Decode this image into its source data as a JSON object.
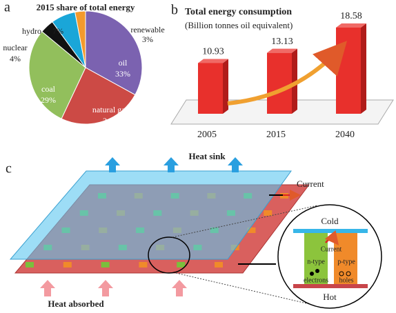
{
  "panel_labels": [
    "a",
    "b",
    "c"
  ],
  "chart_data": [
    {
      "type": "pie",
      "title": "2015 share of total energy",
      "categories": [
        "oil",
        "natural gas",
        "coal",
        "nuclear",
        "hydro",
        "renewable"
      ],
      "values": [
        33,
        24,
        29,
        4,
        7,
        3
      ],
      "value_labels": [
        "33%",
        "24%",
        "29%",
        "4%",
        "7%",
        "3%"
      ],
      "colors": [
        "#7b62b0",
        "#cc4a45",
        "#92bf5c",
        "#111111",
        "#1aa6d8",
        "#f39a2c"
      ]
    },
    {
      "type": "bar",
      "title": "Total energy consumption",
      "subtitle": "(Billion tonnes oil equivalent)",
      "categories": [
        "2005",
        "2015",
        "2040"
      ],
      "values": [
        10.93,
        13.13,
        18.58
      ],
      "color": "#e8302c"
    }
  ],
  "diagram": {
    "heat_sink": "Heat sink",
    "current": "Current",
    "heat_absorbed": "Heat absorbed",
    "inset": {
      "cold": "Cold",
      "current": "Current",
      "n_type": "n-type",
      "p_type": "p-type",
      "electrons": "electrons",
      "holes": "holes",
      "hot": "Hot"
    }
  }
}
